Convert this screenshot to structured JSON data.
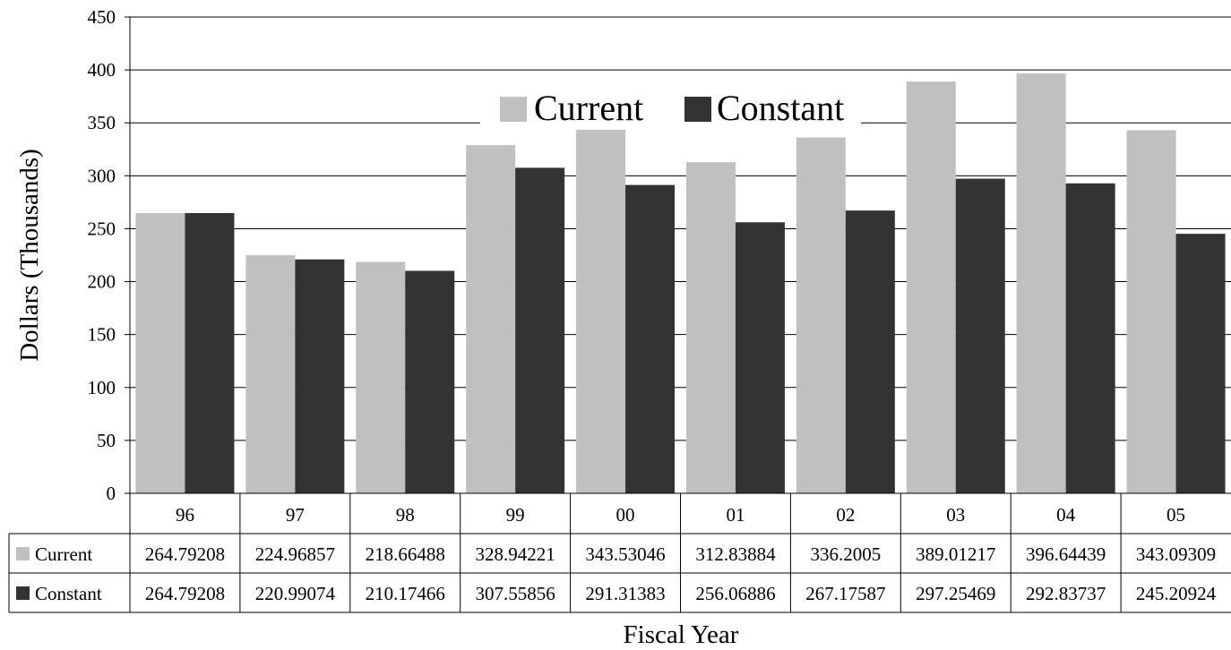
{
  "chart_data": {
    "type": "bar",
    "title": "",
    "xlabel": "Fiscal Year",
    "ylabel": "Dollars (Thousands)",
    "ylim": [
      0,
      450
    ],
    "yticks": [
      "0",
      "50",
      "100",
      "150",
      "200",
      "250",
      "300",
      "350",
      "400",
      "450"
    ],
    "grid": true,
    "legend_position": "top-center",
    "categories": [
      "96",
      "97",
      "98",
      "99",
      "00",
      "01",
      "02",
      "03",
      "04",
      "05"
    ],
    "series": [
      {
        "name": "Current",
        "color": "#c0c0c0",
        "values": [
          264.79208,
          224.96857,
          218.66488,
          328.94221,
          343.53046,
          312.83884,
          336.2005,
          389.01217,
          396.64439,
          343.09309
        ],
        "labels": [
          "264.79208",
          "224.96857",
          "218.66488",
          "328.94221",
          "343.53046",
          "312.83884",
          "336.2005",
          "389.01217",
          "396.64439",
          "343.09309"
        ]
      },
      {
        "name": "Constant",
        "color": "#333333",
        "values": [
          264.79208,
          220.99074,
          210.17466,
          307.55856,
          291.31383,
          256.06886,
          267.17587,
          297.25469,
          292.83737,
          245.20924
        ],
        "labels": [
          "264.79208",
          "220.99074",
          "210.17466",
          "307.55856",
          "291.31383",
          "256.06886",
          "267.17587",
          "297.25469",
          "292.83737",
          "245.20924"
        ]
      }
    ]
  }
}
